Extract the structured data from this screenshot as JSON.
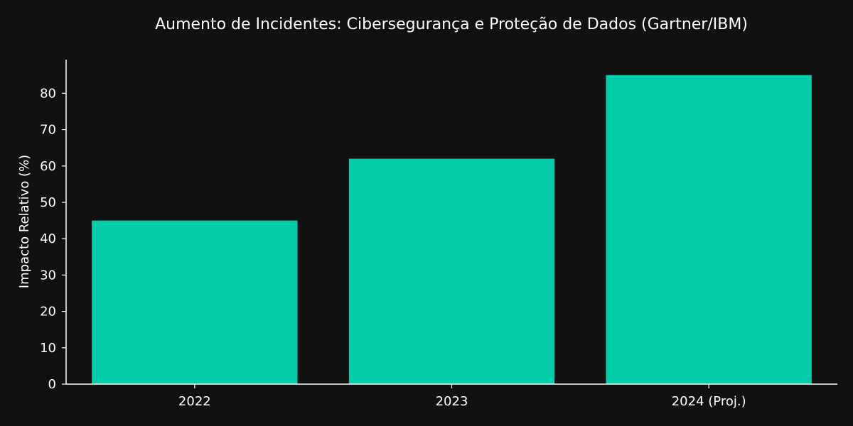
{
  "chart_data": {
    "type": "bar",
    "title": "Aumento de Incidentes: Cibersegurança e Proteção de Dados (Gartner/IBM)",
    "xlabel": "",
    "ylabel": "Impacto Relativo (%)",
    "categories": [
      "2022",
      "2023",
      "2024 (Proj.)"
    ],
    "values": [
      45,
      62,
      85
    ],
    "ylim": [
      0,
      89.25
    ],
    "yticks": [
      0,
      10,
      20,
      30,
      40,
      50,
      60,
      70,
      80
    ],
    "grid": false,
    "legend": "none",
    "colors": {
      "background": "#111111",
      "bar": "#04ceaa",
      "text": "#ffffff",
      "axis": "#ffffff"
    }
  }
}
